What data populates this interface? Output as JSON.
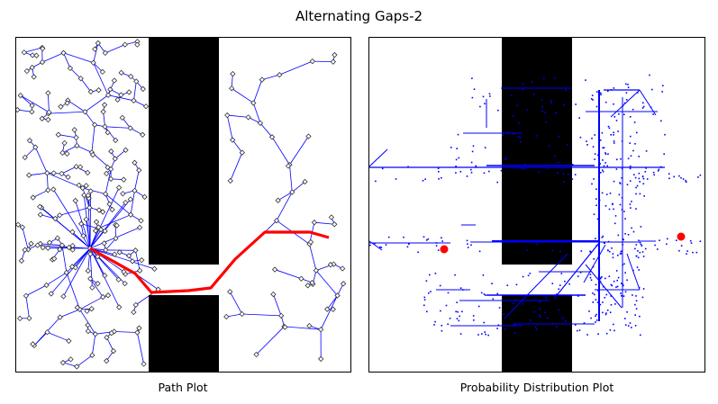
{
  "figure": {
    "title": "Alternating Gaps-2"
  },
  "panels": [
    {
      "caption": "Path Plot"
    },
    {
      "caption": "Probability Distribution Plot"
    }
  ],
  "colors": {
    "obstacle": "#000000",
    "tree_edge": "#0000ff",
    "path": "#ff0000",
    "node_marker": "#000000",
    "distribution": "#0000ff"
  },
  "icons": {
    "node": "diamond-marker",
    "start_goal": "red-dot"
  }
}
